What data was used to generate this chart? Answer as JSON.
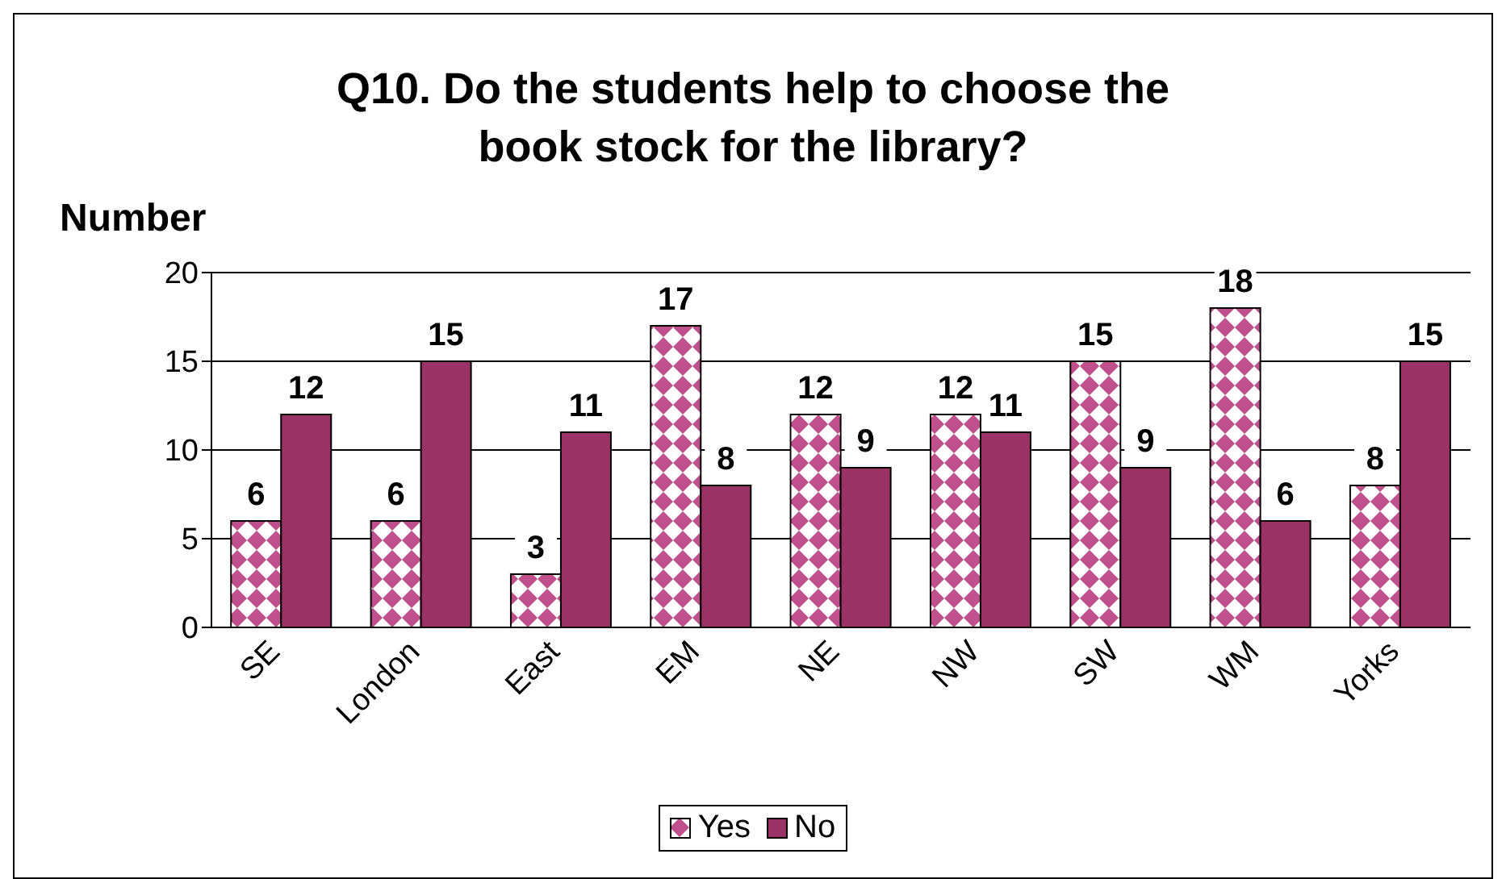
{
  "chart_data": {
    "type": "bar",
    "title": "Q10. Do the students help to choose the book stock for the library?",
    "ylabel": "Number",
    "categories": [
      "SE",
      "London",
      "East",
      "EM",
      "NE",
      "NW",
      "SW",
      "WM",
      "Yorks"
    ],
    "series": [
      {
        "name": "Yes",
        "color": "#c0508c",
        "values": [
          6,
          6,
          3,
          17,
          12,
          12,
          15,
          18,
          8
        ]
      },
      {
        "name": "No",
        "color": "#993366",
        "values": [
          12,
          15,
          11,
          8,
          9,
          11,
          9,
          6,
          15
        ]
      }
    ],
    "ylim": [
      0,
      20
    ],
    "yticks": [
      0,
      5,
      10,
      15,
      20
    ],
    "grid": "y",
    "legend": "bottom",
    "data_labels": true
  }
}
